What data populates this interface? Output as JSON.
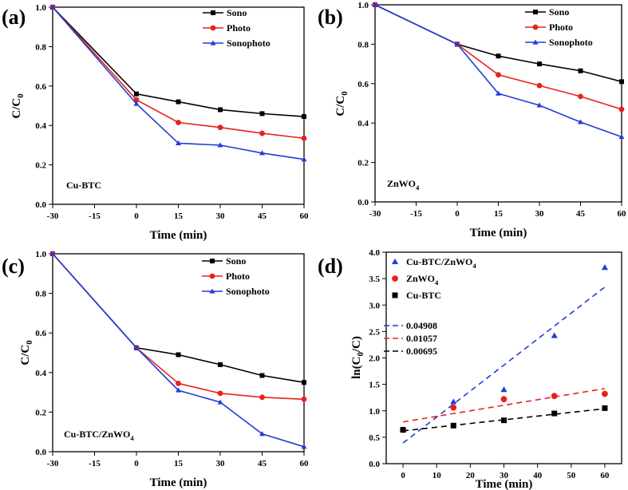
{
  "chart_data": [
    {
      "panel_label": "(a)",
      "type": "line",
      "xlabel": "Time (min)",
      "ylabel": "C/C",
      "ylabel_sub": "0",
      "annotation": "Cu-BTC",
      "annotation_sub": "",
      "xlim": [
        -30,
        60
      ],
      "ylim": [
        0.0,
        1.0
      ],
      "x_ticks": [
        -30,
        -15,
        0,
        15,
        30,
        45,
        60
      ],
      "y_ticks": [
        "0.0",
        "0.2",
        "0.4",
        "0.6",
        "0.8",
        "1.0"
      ],
      "x": [
        -30,
        0,
        15,
        30,
        45,
        60
      ],
      "series": [
        {
          "name": "Sono",
          "color": "#000000",
          "marker": "square",
          "values": [
            1.0,
            0.56,
            0.52,
            0.48,
            0.46,
            0.445
          ]
        },
        {
          "name": "Photo",
          "color": "#e8221b",
          "marker": "circle",
          "values": [
            1.0,
            0.53,
            0.415,
            0.39,
            0.36,
            0.335
          ]
        },
        {
          "name": "Sonophoto",
          "color": "#1f3ed6",
          "marker": "triangle",
          "values": [
            1.0,
            0.51,
            0.31,
            0.3,
            0.26,
            0.228
          ]
        }
      ]
    },
    {
      "panel_label": "(b)",
      "type": "line",
      "xlabel": "Time (min)",
      "ylabel": "C/C",
      "ylabel_sub": "0",
      "annotation": "ZnWO",
      "annotation_sub": "4",
      "xlim": [
        -30,
        60
      ],
      "ylim": [
        0.0,
        1.0
      ],
      "x_ticks": [
        -30,
        -15,
        0,
        15,
        30,
        45,
        60
      ],
      "y_ticks": [
        "0.0",
        "0.2",
        "0.4",
        "0.6",
        "0.8",
        "1.0"
      ],
      "x": [
        -30,
        0,
        15,
        30,
        45,
        60
      ],
      "series": [
        {
          "name": "Sono",
          "color": "#000000",
          "marker": "square",
          "values": [
            1.0,
            0.8,
            0.74,
            0.7,
            0.665,
            0.61
          ]
        },
        {
          "name": "Photo",
          "color": "#e8221b",
          "marker": "circle",
          "values": [
            1.0,
            0.8,
            0.645,
            0.59,
            0.535,
            0.47
          ]
        },
        {
          "name": "Sonophoto",
          "color": "#1f3ed6",
          "marker": "triangle",
          "values": [
            1.0,
            0.8,
            0.55,
            0.49,
            0.405,
            0.33
          ]
        }
      ]
    },
    {
      "panel_label": "(c)",
      "type": "line",
      "xlabel": "Time (min)",
      "ylabel": "C/C",
      "ylabel_sub": "0",
      "annotation": "Cu-BTC/ZnWO",
      "annotation_sub": "4",
      "xlim": [
        -30,
        60
      ],
      "ylim": [
        0.0,
        1.0
      ],
      "x_ticks": [
        -30,
        -15,
        0,
        15,
        30,
        45,
        60
      ],
      "y_ticks": [
        "0.0",
        "0.2",
        "0.4",
        "0.6",
        "0.8",
        "1.0"
      ],
      "x": [
        -30,
        0,
        15,
        30,
        45,
        60
      ],
      "series": [
        {
          "name": "Sono",
          "color": "#000000",
          "marker": "square",
          "values": [
            1.0,
            0.525,
            0.49,
            0.44,
            0.385,
            0.35
          ]
        },
        {
          "name": "Photo",
          "color": "#e8221b",
          "marker": "circle",
          "values": [
            1.0,
            0.525,
            0.345,
            0.295,
            0.275,
            0.265
          ]
        },
        {
          "name": "Sonophoto",
          "color": "#1f3ed6",
          "marker": "triangle",
          "values": [
            1.0,
            0.525,
            0.31,
            0.25,
            0.09,
            0.025
          ]
        }
      ]
    },
    {
      "panel_label": "(d)",
      "type": "scatter",
      "xlabel": "Time (min)",
      "ylabel_prefix": "ln(C",
      "ylabel_sub": "0",
      "ylabel_suffix": "/C)",
      "xlim": [
        -5,
        65
      ],
      "ylim": [
        0.0,
        4.0
      ],
      "x_ticks": [
        0,
        10,
        20,
        30,
        40,
        50,
        60
      ],
      "y_ticks": [
        "0.0",
        "0.5",
        "1.0",
        "1.5",
        "2.0",
        "2.5",
        "3.0",
        "3.5",
        "4.0"
      ],
      "x": [
        0,
        15,
        30,
        45,
        60
      ],
      "series": [
        {
          "name": "Cu-BTC/ZnWO",
          "name_sub": "4",
          "color": "#1f3ed6",
          "marker": "triangle",
          "values": [
            0.64,
            1.17,
            1.4,
            2.42,
            3.71
          ]
        },
        {
          "name": "ZnWO",
          "name_sub": "4",
          "color": "#e8221b",
          "marker": "circle",
          "values": [
            0.64,
            1.06,
            1.22,
            1.28,
            1.32
          ]
        },
        {
          "name": "Cu-BTC",
          "name_sub": "",
          "color": "#000000",
          "marker": "square",
          "values": [
            0.64,
            0.72,
            0.82,
            0.95,
            1.05
          ]
        }
      ],
      "fits": [
        {
          "label": "0.04908",
          "color": "#1f3ed6",
          "x": [
            0,
            60
          ],
          "y": [
            0.39,
            3.34
          ]
        },
        {
          "label": "0.01057",
          "color": "#e8221b",
          "x": [
            0,
            60
          ],
          "y": [
            0.79,
            1.42
          ]
        },
        {
          "label": "0.00695",
          "color": "#000000",
          "x": [
            0,
            60
          ],
          "y": [
            0.62,
            1.04
          ]
        }
      ]
    }
  ]
}
